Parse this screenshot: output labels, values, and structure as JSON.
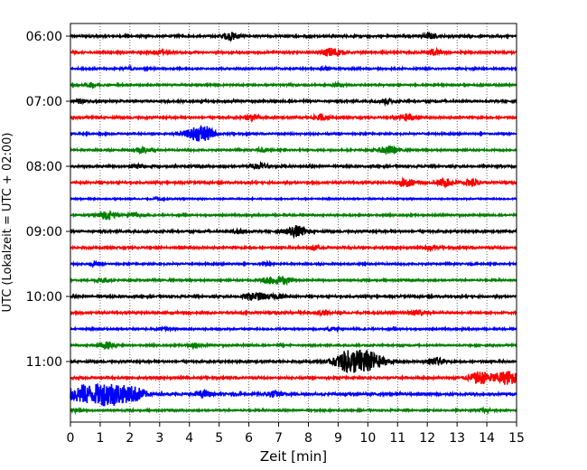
{
  "chart_data": {
    "type": "line",
    "title": "",
    "xlabel": "Zeit  [min]",
    "ylabel": "UTC (Lokalzeit = UTC + 02:00)",
    "xlim": [
      0,
      15
    ],
    "x_ticks": [
      0,
      1,
      2,
      3,
      4,
      5,
      6,
      7,
      8,
      9,
      10,
      11,
      12,
      13,
      14,
      15
    ],
    "x_tick_labels": [
      "0",
      "1",
      "2",
      "3",
      "4",
      "5",
      "6",
      "7",
      "8",
      "9",
      "10",
      "11",
      "12",
      "13",
      "14",
      "15"
    ],
    "y_tick_labels": [
      "06:00",
      "07:00",
      "08:00",
      "09:00",
      "10:00",
      "11:00"
    ],
    "y_ticks_row_index": [
      0,
      4,
      8,
      12,
      16,
      20
    ],
    "grid": "vertical dotted",
    "legend": "none",
    "colors": [
      "#000000",
      "#ff0000",
      "#0000ff",
      "#008000"
    ],
    "series": [
      {
        "start": "06:00",
        "events": [
          [
            5.4,
            0.5
          ],
          [
            12.1,
            0.35
          ]
        ],
        "noise": 0.12
      },
      {
        "start": "06:15",
        "events": [
          [
            8.8,
            0.6
          ],
          [
            12.2,
            0.4
          ],
          [
            3.0,
            0.25
          ]
        ],
        "noise": 0.12
      },
      {
        "start": "06:30",
        "events": [
          [
            2.0,
            0.2
          ],
          [
            8.6,
            0.2
          ]
        ],
        "noise": 0.1
      },
      {
        "start": "06:45",
        "events": [
          [
            0.7,
            0.3
          ],
          [
            9.0,
            0.2
          ]
        ],
        "noise": 0.1
      },
      {
        "start": "07:00",
        "events": [
          [
            0.3,
            0.25
          ],
          [
            10.6,
            0.3
          ]
        ],
        "noise": 0.12
      },
      {
        "start": "07:15",
        "events": [
          [
            6.1,
            0.4
          ],
          [
            8.4,
            0.35
          ],
          [
            11.3,
            0.45
          ]
        ],
        "noise": 0.12
      },
      {
        "start": "07:30",
        "events": [
          [
            4.3,
            0.9
          ],
          [
            4.6,
            0.4
          ]
        ],
        "noise": 0.1
      },
      {
        "start": "07:45",
        "events": [
          [
            2.4,
            0.4
          ],
          [
            10.7,
            0.55
          ],
          [
            6.5,
            0.25
          ]
        ],
        "noise": 0.1
      },
      {
        "start": "08:00",
        "events": [
          [
            6.4,
            0.4
          ],
          [
            2.3,
            0.25
          ]
        ],
        "noise": 0.12
      },
      {
        "start": "08:15",
        "events": [
          [
            11.3,
            0.5
          ],
          [
            12.6,
            0.5
          ],
          [
            13.5,
            0.45
          ]
        ],
        "noise": 0.12
      },
      {
        "start": "08:30",
        "events": [
          [
            3.0,
            0.15
          ]
        ],
        "noise": 0.08
      },
      {
        "start": "08:45",
        "events": [
          [
            1.2,
            0.55
          ],
          [
            2.2,
            0.3
          ]
        ],
        "noise": 0.1
      },
      {
        "start": "09:00",
        "events": [
          [
            7.6,
            0.7
          ],
          [
            5.7,
            0.3
          ]
        ],
        "noise": 0.12
      },
      {
        "start": "09:15",
        "events": [
          [
            8.2,
            0.25
          ],
          [
            12.1,
            0.25
          ]
        ],
        "noise": 0.12
      },
      {
        "start": "09:30",
        "events": [
          [
            0.8,
            0.2
          ],
          [
            6.6,
            0.2
          ]
        ],
        "noise": 0.1
      },
      {
        "start": "09:45",
        "events": [
          [
            6.7,
            0.5
          ],
          [
            7.2,
            0.4
          ],
          [
            1.1,
            0.3
          ]
        ],
        "noise": 0.1
      },
      {
        "start": "10:00",
        "events": [
          [
            6.4,
            0.45
          ],
          [
            7.0,
            0.3
          ],
          [
            6.0,
            0.3
          ]
        ],
        "noise": 0.12
      },
      {
        "start": "10:15",
        "events": [
          [
            11.7,
            0.4
          ],
          [
            8.5,
            0.25
          ]
        ],
        "noise": 0.12
      },
      {
        "start": "10:30",
        "events": [
          [
            8.8,
            0.2
          ],
          [
            3.1,
            0.2
          ]
        ],
        "noise": 0.1
      },
      {
        "start": "10:45",
        "events": [
          [
            1.2,
            0.45
          ],
          [
            4.2,
            0.3
          ]
        ],
        "noise": 0.1
      },
      {
        "start": "11:00",
        "events": [
          [
            9.8,
            1.6
          ],
          [
            9.2,
            0.6
          ],
          [
            12.3,
            0.45
          ]
        ],
        "noise": 0.12
      },
      {
        "start": "11:15",
        "events": [
          [
            13.8,
            0.8
          ],
          [
            14.7,
            0.9
          ]
        ],
        "noise": 0.12
      },
      {
        "start": "11:30",
        "events": [
          [
            0.3,
            1.0
          ],
          [
            1.3,
            1.6
          ],
          [
            2.2,
            0.7
          ],
          [
            4.5,
            0.4
          ],
          [
            6.8,
            0.4
          ]
        ],
        "noise": 0.14
      },
      {
        "start": "11:45",
        "events": [
          [
            0.2,
            0.2
          ],
          [
            13.9,
            0.2
          ]
        ],
        "noise": 0.1
      }
    ]
  }
}
